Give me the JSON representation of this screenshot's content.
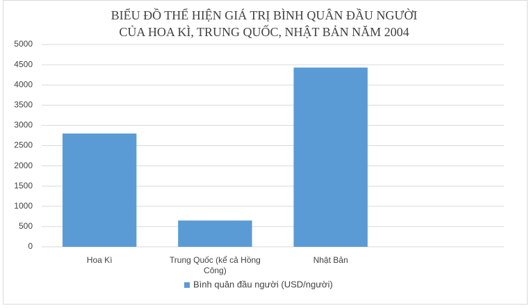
{
  "chart_data": {
    "type": "bar",
    "title": [
      "BIỂU ĐỒ THỂ HIỆN GIÁ TRỊ BÌNH QUÂN ĐẦU NGƯỜI",
      "CỦA HOA KÌ, TRUNG QUỐC, NHẬT BẢN NĂM 2004"
    ],
    "categories": [
      "Hoa Kì",
      "Trung Quốc (kể cả Hồng Công)",
      "Nhật Bản",
      null
    ],
    "series": [
      {
        "name": "Bình quân đầu người (USD/người)",
        "color": "#5b9bd5",
        "values": [
          2800,
          650,
          4430,
          null
        ]
      }
    ],
    "ylim": [
      0,
      5000
    ],
    "yticks": [
      0,
      500,
      1000,
      1500,
      2000,
      2500,
      3000,
      3500,
      4000,
      4500,
      5000
    ],
    "grid": true,
    "legend": "bottom"
  }
}
